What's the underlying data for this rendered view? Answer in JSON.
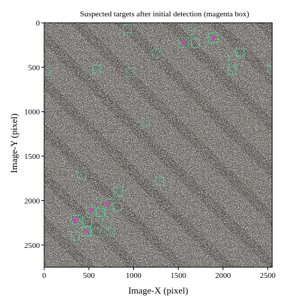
{
  "chart_data": {
    "type": "image",
    "title": "Suspected targets after initial detection (magenta box)",
    "xlabel": "Image-X (pixel)",
    "ylabel": "Image-Y (pixel)",
    "xlim": [
      0,
      2550
    ],
    "ylim": [
      2750,
      0
    ],
    "x_ticks": [
      0,
      500,
      1000,
      1500,
      2000,
      2500
    ],
    "y_ticks": [
      0,
      500,
      1000,
      1500,
      2000,
      2500
    ],
    "colors": {
      "background_image": "#6e6a66",
      "detection_box": "#4fd8a0",
      "target_highlight": "#d63cc8",
      "diagonal_band": "#504c49"
    },
    "detections": [
      {
        "x": 930,
        "y": 70,
        "w": 90,
        "h": 90
      },
      {
        "x": 1640,
        "y": 90,
        "w": 80,
        "h": 80
      },
      {
        "x": 1890,
        "y": 170,
        "w": 110,
        "h": 110,
        "target": true
      },
      {
        "x": 1560,
        "y": 220,
        "w": 110,
        "h": 110,
        "target": true
      },
      {
        "x": 1690,
        "y": 230,
        "w": 90,
        "h": 90
      },
      {
        "x": 1260,
        "y": 340,
        "w": 90,
        "h": 90
      },
      {
        "x": 2190,
        "y": 330,
        "w": 90,
        "h": 90
      },
      {
        "x": 2110,
        "y": 420,
        "w": 100,
        "h": 100
      },
      {
        "x": 2100,
        "y": 540,
        "w": 90,
        "h": 90
      },
      {
        "x": 30,
        "y": 550,
        "w": 90,
        "h": 90
      },
      {
        "x": 590,
        "y": 520,
        "w": 90,
        "h": 90
      },
      {
        "x": 960,
        "y": 560,
        "w": 90,
        "h": 90
      },
      {
        "x": 2540,
        "y": 520,
        "w": 80,
        "h": 80
      },
      {
        "x": 1130,
        "y": 1120,
        "w": 90,
        "h": 90
      },
      {
        "x": 1290,
        "y": 1780,
        "w": 90,
        "h": 90
      },
      {
        "x": 420,
        "y": 1720,
        "w": 90,
        "h": 90
      },
      {
        "x": 830,
        "y": 1900,
        "w": 100,
        "h": 100
      },
      {
        "x": 700,
        "y": 2040,
        "w": 120,
        "h": 120,
        "target": true
      },
      {
        "x": 820,
        "y": 2070,
        "w": 90,
        "h": 90
      },
      {
        "x": 520,
        "y": 2110,
        "w": 100,
        "h": 100,
        "target": true
      },
      {
        "x": 630,
        "y": 2130,
        "w": 90,
        "h": 90
      },
      {
        "x": 350,
        "y": 2220,
        "w": 110,
        "h": 110,
        "target": true
      },
      {
        "x": 480,
        "y": 2240,
        "w": 100,
        "h": 100
      },
      {
        "x": 700,
        "y": 2250,
        "w": 100,
        "h": 100
      },
      {
        "x": 470,
        "y": 2350,
        "w": 100,
        "h": 100,
        "target": true
      },
      {
        "x": 580,
        "y": 2360,
        "w": 90,
        "h": 90
      },
      {
        "x": 350,
        "y": 2400,
        "w": 90,
        "h": 90
      },
      {
        "x": 740,
        "y": 2360,
        "w": 90,
        "h": 90
      }
    ]
  }
}
